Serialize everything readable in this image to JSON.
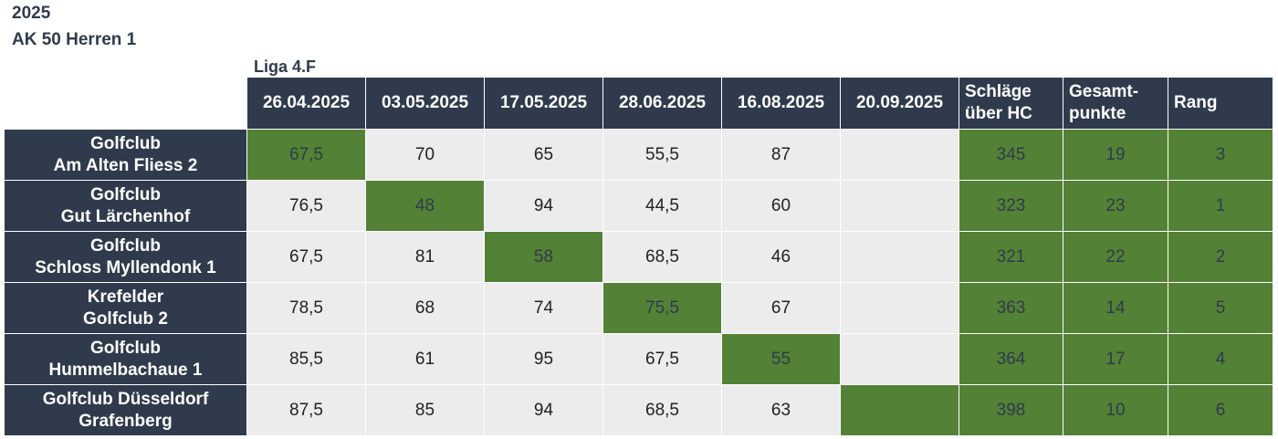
{
  "year": "2025",
  "group": "AK 50 Herren 1",
  "league": "Liga 4.F",
  "dates": [
    "26.04.2025",
    "03.05.2025",
    "17.05.2025",
    "28.06.2025",
    "16.08.2025",
    "20.09.2025"
  ],
  "headers": {
    "strokes": [
      "Schläge",
      "über HC"
    ],
    "points": [
      "Gesamt-",
      "punkte"
    ],
    "rank": "Rang"
  },
  "highlight_color": "#538135",
  "header_color": "#2f3b4c",
  "teams": [
    {
      "name": [
        "Golfclub",
        "Am Alten Fliess 2"
      ],
      "scores": [
        "67,5",
        "70",
        "65",
        "55,5",
        "87",
        ""
      ],
      "host_index": 0,
      "strokes": "345",
      "points": "19",
      "rank": "3"
    },
    {
      "name": [
        "Golfclub",
        "Gut Lärchenhof"
      ],
      "scores": [
        "76,5",
        "48",
        "94",
        "44,5",
        "60",
        ""
      ],
      "host_index": 1,
      "strokes": "323",
      "points": "23",
      "rank": "1"
    },
    {
      "name": [
        "Golfclub",
        "Schloss Myllendonk 1"
      ],
      "scores": [
        "67,5",
        "81",
        "58",
        "68,5",
        "46",
        ""
      ],
      "host_index": 2,
      "strokes": "321",
      "points": "22",
      "rank": "2"
    },
    {
      "name": [
        "Krefelder",
        "Golfclub 2"
      ],
      "scores": [
        "78,5",
        "68",
        "74",
        "75,5",
        "67",
        ""
      ],
      "host_index": 3,
      "strokes": "363",
      "points": "14",
      "rank": "5"
    },
    {
      "name": [
        "Golfclub",
        "Hummelbachaue 1"
      ],
      "scores": [
        "85,5",
        "61",
        "95",
        "67,5",
        "55",
        ""
      ],
      "host_index": 4,
      "strokes": "364",
      "points": "17",
      "rank": "4"
    },
    {
      "name": [
        "Golfclub Düsseldorf",
        "Grafenberg"
      ],
      "scores": [
        "87,5",
        "85",
        "94",
        "68,5",
        "63",
        ""
      ],
      "host_index": 5,
      "strokes": "398",
      "points": "10",
      "rank": "6"
    }
  ]
}
